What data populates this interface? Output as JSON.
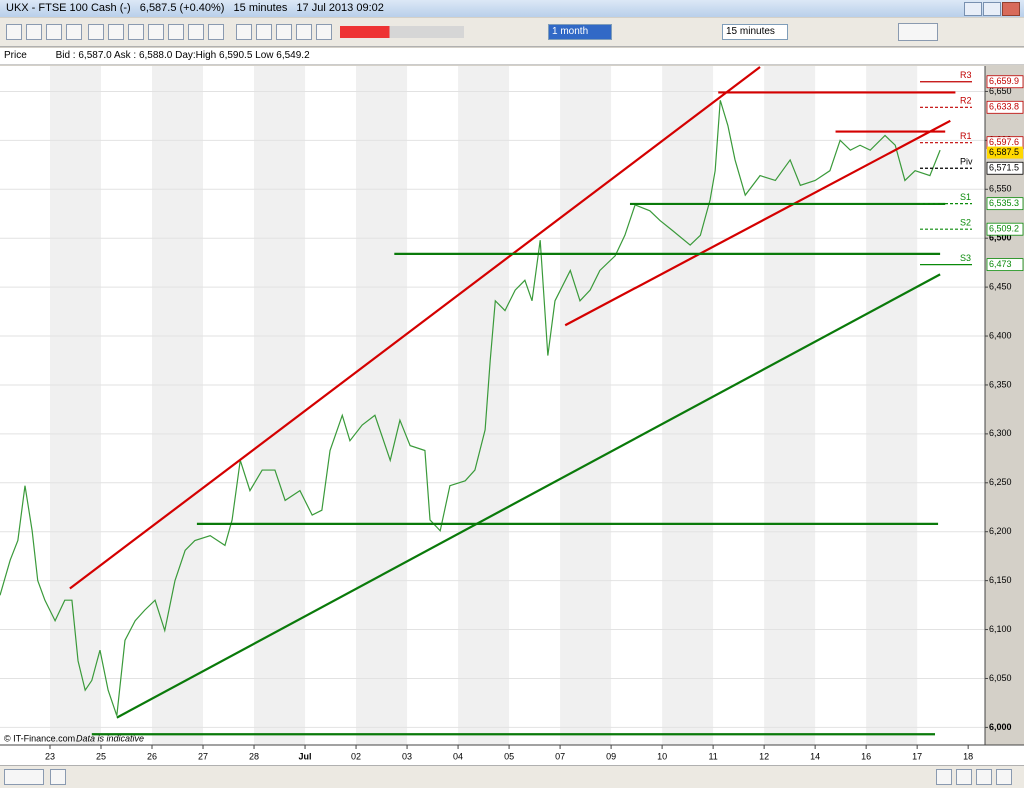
{
  "window": {
    "title": "UKX - FTSE 100 Cash (-)",
    "quote": "6,587.5 (+0.40%)",
    "interval": "15 minutes",
    "timestamp": "17 Jul 2013 09:02"
  },
  "toolbar": {
    "period": "1 month",
    "interval": "15 minutes"
  },
  "info_bar": {
    "label": "Price",
    "text": "Bid : 6,587.0 Ask : 6,588.0 Day:High 6,590.5 Low 6,549.2"
  },
  "chart_data": {
    "type": "line",
    "xlim": [
      -0.98,
      18.33
    ],
    "ylim": [
      5982,
      6676
    ],
    "xticks": [
      {
        "value": 0,
        "label": "23"
      },
      {
        "value": 1,
        "label": "25"
      },
      {
        "value": 2,
        "label": "26"
      },
      {
        "value": 3,
        "label": "27"
      },
      {
        "value": 4,
        "label": "28"
      },
      {
        "value": 5,
        "label": "Jul"
      },
      {
        "value": 6,
        "label": "02"
      },
      {
        "value": 7,
        "label": "03"
      },
      {
        "value": 8,
        "label": "04"
      },
      {
        "value": 9,
        "label": "05"
      },
      {
        "value": 10,
        "label": "07"
      },
      {
        "value": 11,
        "label": "09"
      },
      {
        "value": 12,
        "label": "10"
      },
      {
        "value": 13,
        "label": "11"
      },
      {
        "value": 14,
        "label": "12"
      },
      {
        "value": 15,
        "label": "14"
      },
      {
        "value": 16,
        "label": "16"
      },
      {
        "value": 17,
        "label": "17"
      },
      {
        "value": 18,
        "label": "18"
      }
    ],
    "yticks": [
      {
        "value": 6000,
        "label": "6,000"
      },
      {
        "value": 6050,
        "label": "6,050"
      },
      {
        "value": 6100,
        "label": "6,100"
      },
      {
        "value": 6150,
        "label": "6,150"
      },
      {
        "value": 6200,
        "label": "6,200"
      },
      {
        "value": 6250,
        "label": "6,250"
      },
      {
        "value": 6300,
        "label": "6,300"
      },
      {
        "value": 6350,
        "label": "6,350"
      },
      {
        "value": 6400,
        "label": "6,400"
      },
      {
        "value": 6450,
        "label": "6,450"
      },
      {
        "value": 6500,
        "label": "6,500"
      },
      {
        "value": 6550,
        "label": "6,550"
      },
      {
        "value": 6600,
        "label": "6,600"
      },
      {
        "value": 6650,
        "label": "6,650"
      }
    ],
    "grid": true,
    "series": [
      {
        "color": "#3a9a3a",
        "x": [
          -0.98,
          -0.78,
          -0.63,
          -0.49,
          -0.35,
          -0.24,
          -0.1,
          0.1,
          0.29,
          0.43,
          0.55,
          0.69,
          0.82,
          0.98,
          1.14,
          1.31,
          1.47,
          1.67,
          1.86,
          2.06,
          2.25,
          2.45,
          2.65,
          2.84,
          3.14,
          3.43,
          3.57,
          3.73,
          3.92,
          4.16,
          4.41,
          4.61,
          4.9,
          5.14,
          5.33,
          5.49,
          5.73,
          5.88,
          6.12,
          6.37,
          6.67,
          6.86,
          7.06,
          7.35,
          7.45,
          7.65,
          7.84,
          8.14,
          8.33,
          8.53,
          8.63,
          8.73,
          8.92,
          9.12,
          9.31,
          9.45,
          9.61,
          9.76,
          9.9,
          10.2,
          10.39,
          10.59,
          10.78,
          11.08,
          11.27,
          11.47,
          11.76,
          11.96,
          12.2,
          12.55,
          12.75,
          12.94,
          13.04,
          13.14,
          13.29,
          13.43,
          13.63,
          13.92,
          14.22,
          14.51,
          14.71,
          15.0,
          15.29,
          15.49,
          15.69,
          15.88,
          16.08,
          16.37,
          16.57,
          16.76,
          16.96,
          17.25,
          17.45
        ],
        "values": [
          6135,
          6171,
          6191,
          6247,
          6201,
          6150,
          6130,
          6109,
          6130,
          6130,
          6068,
          6038,
          6048,
          6079,
          6038,
          6012,
          6089,
          6109,
          6120,
          6130,
          6099,
          6150,
          6181,
          6191,
          6196,
          6186,
          6212,
          6273,
          6242,
          6263,
          6263,
          6232,
          6242,
          6217,
          6222,
          6283,
          6319,
          6293,
          6309,
          6319,
          6273,
          6314,
          6288,
          6283,
          6212,
          6201,
          6247,
          6252,
          6263,
          6304,
          6375,
          6436,
          6426,
          6447,
          6457,
          6436,
          6498,
          6380,
          6436,
          6467,
          6436,
          6447,
          6467,
          6482,
          6503,
          6534,
          6528,
          6518,
          6508,
          6493,
          6503,
          6539,
          6569,
          6641,
          6615,
          6580,
          6544,
          6564,
          6559,
          6580,
          6554,
          6559,
          6569,
          6600,
          6590,
          6595,
          6590,
          6605,
          6595,
          6559,
          6569,
          6564,
          6590
        ]
      }
    ],
    "trendlines": [
      {
        "color": "#d40000",
        "x": [
          0.39,
          13.92
        ],
        "y": [
          6142,
          6675
        ]
      },
      {
        "color": "#d40000",
        "x": [
          10.1,
          17.65
        ],
        "y": [
          6411,
          6620
        ]
      },
      {
        "color": "#d40000",
        "x": [
          13.1,
          17.75
        ],
        "y": [
          6649,
          6649
        ]
      },
      {
        "color": "#d40000",
        "x": [
          15.4,
          17.55
        ],
        "y": [
          6609,
          6609
        ]
      },
      {
        "color": "#0a7a0a",
        "x": [
          0.82,
          17.35
        ],
        "y": [
          5993,
          5993
        ]
      },
      {
        "color": "#0a7a0a",
        "x": [
          2.88,
          17.41
        ],
        "y": [
          6208,
          6208
        ]
      },
      {
        "color": "#0a7a0a",
        "x": [
          6.75,
          17.45
        ],
        "y": [
          6484,
          6484
        ]
      },
      {
        "color": "#0a7a0a",
        "x": [
          11.37,
          17.55
        ],
        "y": [
          6535,
          6535
        ]
      },
      {
        "color": "#0a7a0a",
        "x": [
          1.31,
          17.45
        ],
        "y": [
          6010,
          6463
        ]
      }
    ],
    "pivots": [
      {
        "name": "R3",
        "value": 6659.9,
        "label": "6,659.9",
        "color": "#c00000",
        "dashed": false
      },
      {
        "name": "R2",
        "value": 6633.8,
        "label": "6,633.8",
        "color": "#c00000",
        "dashed": true
      },
      {
        "name": "R1",
        "value": 6597.6,
        "label": "6,597.6",
        "color": "#c00000",
        "dashed": true
      },
      {
        "name": "Piv",
        "value": 6571.5,
        "label": "6,571.5",
        "color": "#000000",
        "dashed": true
      },
      {
        "name": "S1",
        "value": 6535.3,
        "label": "6,535.3",
        "color": "#0a8a0a",
        "dashed": true
      },
      {
        "name": "S2",
        "value": 6509.2,
        "label": "6,509.2",
        "color": "#0a8a0a",
        "dashed": true
      },
      {
        "name": "S3",
        "value": 6473,
        "label": "6,473",
        "color": "#0a8a0a",
        "dashed": false
      }
    ],
    "last_price": {
      "value": 6587.5,
      "label": "6,587.5",
      "color": "#ffd800"
    }
  },
  "footer": {
    "source": "© IT-Finance.com",
    "note": "Data is indicative"
  }
}
